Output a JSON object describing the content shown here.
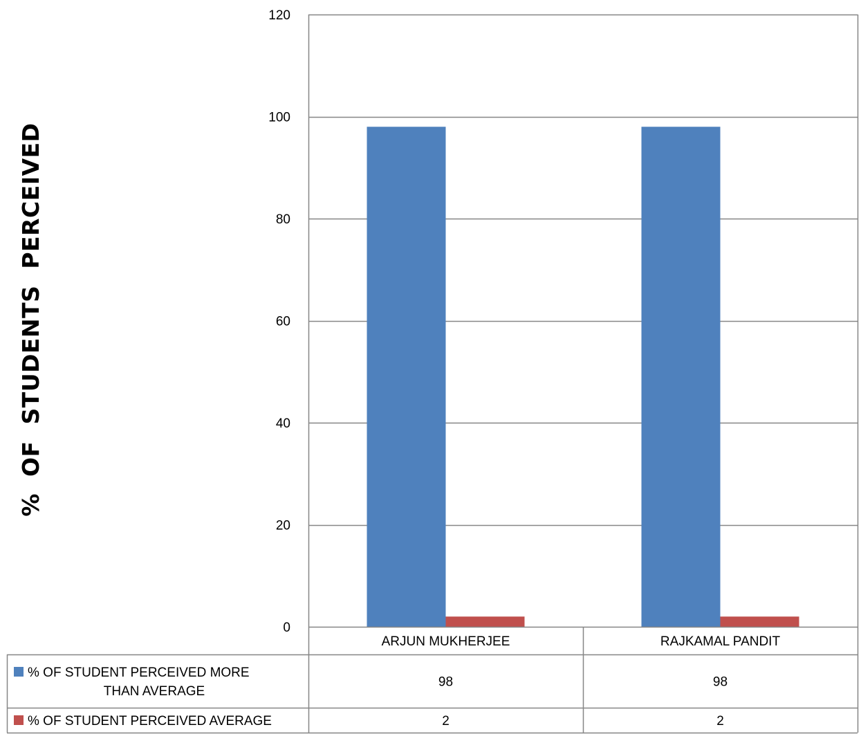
{
  "chart_data": {
    "type": "bar",
    "categories": [
      "ARJUN MUKHERJEE",
      "RAJKAMAL PANDIT"
    ],
    "series": [
      {
        "name": "% OF STUDENT PERCEIVED MORE THAN AVERAGE",
        "name_lines": [
          "% OF STUDENT PERCEIVED MORE",
          "THAN AVERAGE"
        ],
        "values": [
          98,
          98
        ],
        "color": "#4F81BD"
      },
      {
        "name": "% OF STUDENT PERCEIVED AVERAGE",
        "name_lines": [
          "% OF STUDENT PERCEIVED AVERAGE"
        ],
        "values": [
          2,
          2
        ],
        "color": "#C0504D"
      }
    ],
    "title": "",
    "xlabel": "",
    "ylabel": "%  OF  STUDENTS  PERCEIVED",
    "ylim": [
      0,
      120
    ],
    "yticks": [
      0,
      20,
      40,
      60,
      80,
      100,
      120
    ],
    "grid": true,
    "legend": "data table below plot"
  }
}
